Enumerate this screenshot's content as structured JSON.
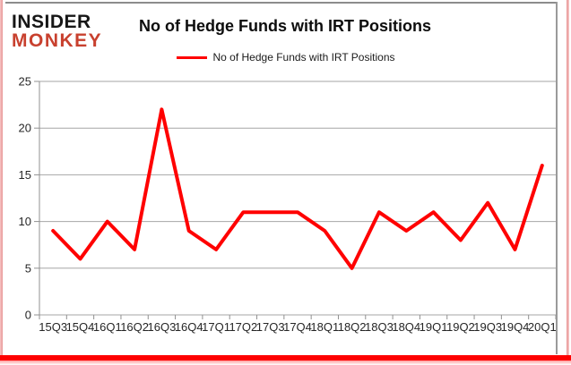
{
  "logo": {
    "line1": "INSIDER",
    "line2": "MONKEY"
  },
  "title": "No of Hedge Funds with IRT Positions",
  "legend": {
    "label": "No of Hedge Funds with IRT Positions"
  },
  "chart_data": {
    "type": "line",
    "title": "No of Hedge Funds with IRT Positions",
    "categories": [
      "15Q3",
      "15Q4",
      "16Q1",
      "16Q2",
      "16Q3",
      "16Q4",
      "17Q1",
      "17Q2",
      "17Q3",
      "17Q4",
      "18Q1",
      "18Q2",
      "18Q3",
      "18Q4",
      "19Q1",
      "19Q2",
      "19Q3",
      "19Q4",
      "20Q1"
    ],
    "series": [
      {
        "name": "No of Hedge Funds with IRT Positions",
        "color": "#ff0000",
        "values": [
          9,
          6,
          10,
          7,
          22,
          9,
          7,
          11,
          11,
          11,
          9,
          5,
          11,
          9,
          11,
          8,
          12,
          7,
          16
        ]
      }
    ],
    "xlabel": "",
    "ylabel": "",
    "ylim": [
      0,
      25
    ],
    "yticks": [
      0,
      5,
      10,
      15,
      20,
      25
    ],
    "grid": "horizontal",
    "legend_position": "top-center"
  },
  "colors": {
    "series_line": "#ff0000",
    "gridline": "#a6a6a6",
    "axis": "#909090",
    "tick_label": "#262626",
    "title_text": "#0d0d0d",
    "logo_black": "#161616",
    "logo_red": "#c8402e",
    "frame_top_gray": "#8c8c8c",
    "frame_side_pink": "#e89595",
    "frame_bottom_red": "#fe0000"
  }
}
